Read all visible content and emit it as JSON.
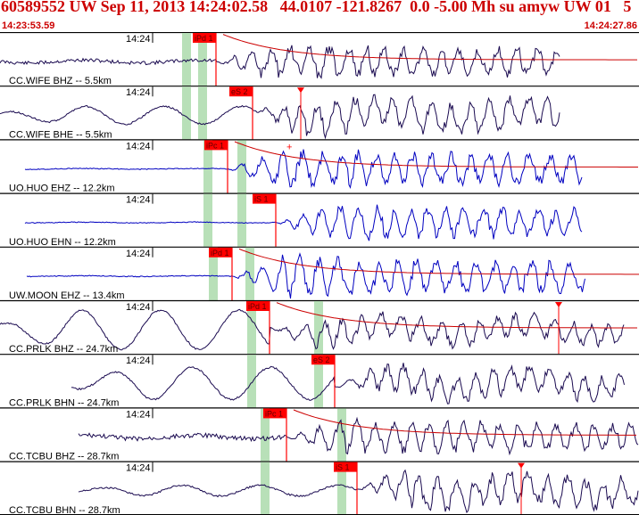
{
  "header": {
    "title": "60589552 UW Sep 11, 2013 14:24:02.58   44.0107 -121.8267  0.0 -5.00 Mh su amyw UW 01   5",
    "start_time": "14:23:53.59",
    "end_time": "14:24:27.86"
  },
  "colors": {
    "header_text": "#cc0000",
    "pick": "#ff0000",
    "pick_window": "#b8e0b8",
    "trace_short_period": "#0000c0",
    "trace_broadband": "#1a0a50",
    "coda_fit": "#cc0000"
  },
  "traces": [
    {
      "label": "CC.WIFE BHZ -- 5.5km",
      "time_label": "14:24",
      "pick": {
        "label": "iPd 1"
      }
    },
    {
      "label": "CC.WIFE BHE -- 5.5km",
      "time_label": "14:24",
      "pick": {
        "label": "eS 2"
      }
    },
    {
      "label": "UO.HUO EHZ -- 12.2km",
      "time_label": "14:24",
      "pick": {
        "label": "iPc 1"
      }
    },
    {
      "label": "UO.HUO EHN -- 12.2km",
      "time_label": "14:24",
      "pick": {
        "label": "iS 1"
      }
    },
    {
      "label": "UW.MOON EHZ -- 13.4km",
      "time_label": "14:24",
      "pick": {
        "label": "iPd 1"
      }
    },
    {
      "label": "CC.PRLK BHZ -- 24.7km",
      "time_label": "14:24",
      "pick": {
        "label": "iPd 1"
      }
    },
    {
      "label": "CC.PRLK BHN -- 24.7km",
      "time_label": "14:24",
      "pick": {
        "label": "eS 2"
      }
    },
    {
      "label": "CC.TCBU BHZ -- 28.7km",
      "time_label": "14:24",
      "pick": {
        "label": "iPc 1"
      }
    },
    {
      "label": "CC.TCBU BHN -- 28.7km",
      "time_label": "14:24",
      "pick": {
        "label": "iS 1"
      }
    }
  ]
}
